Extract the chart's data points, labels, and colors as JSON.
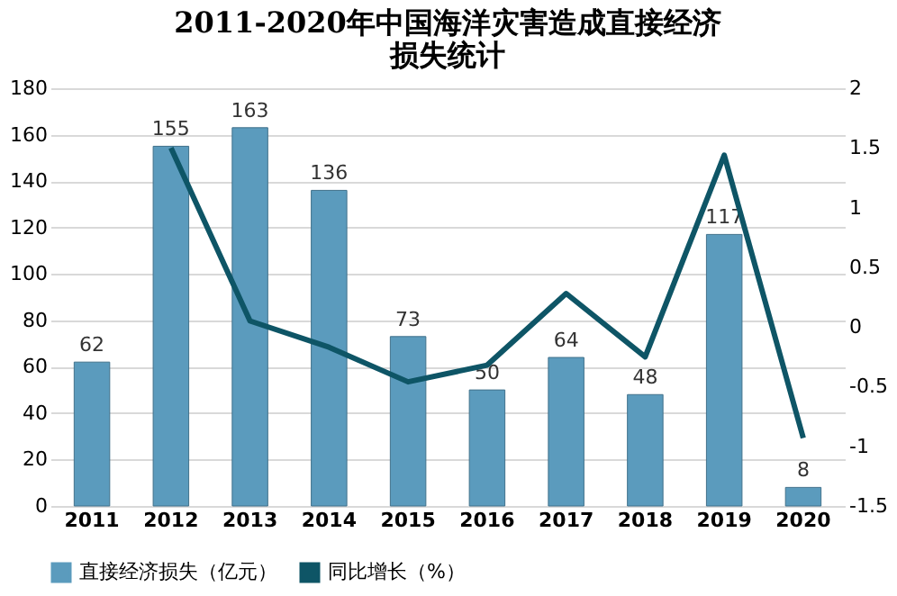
{
  "chart_data": {
    "type": "bar",
    "title": "2011-2020年中国海洋灾害造成直接经济损失统计",
    "categories": [
      "2011",
      "2012",
      "2013",
      "2014",
      "2015",
      "2016",
      "2017",
      "2018",
      "2019",
      "2020"
    ],
    "series": [
      {
        "name": "直接经济损失（亿元）",
        "color": "#5b9bbd",
        "values": [
          62,
          155,
          163,
          136,
          73,
          50,
          64,
          48,
          117,
          8
        ],
        "value_labels": [
          "62",
          "155",
          "163",
          "136",
          "73",
          "50",
          "64",
          "48",
          "117",
          "8"
        ]
      },
      {
        "name": "同比增长（%）",
        "type": "line",
        "axis": "y2",
        "color": "#0e5566",
        "values": [
          null,
          1.5,
          0.05,
          -0.17,
          -0.46,
          -0.32,
          0.28,
          -0.25,
          1.44,
          -0.93
        ]
      }
    ],
    "ylim": [
      0,
      180
    ],
    "yticks": [
      0,
      20,
      40,
      60,
      80,
      100,
      120,
      140,
      160,
      180
    ],
    "y2lim": [
      -1.5,
      2
    ],
    "y2ticks": [
      -1.5,
      -1,
      -0.5,
      0,
      0.5,
      1,
      1.5,
      2
    ],
    "grid": "y",
    "legend": "bottom",
    "marker": "none",
    "line_style": "solid"
  }
}
